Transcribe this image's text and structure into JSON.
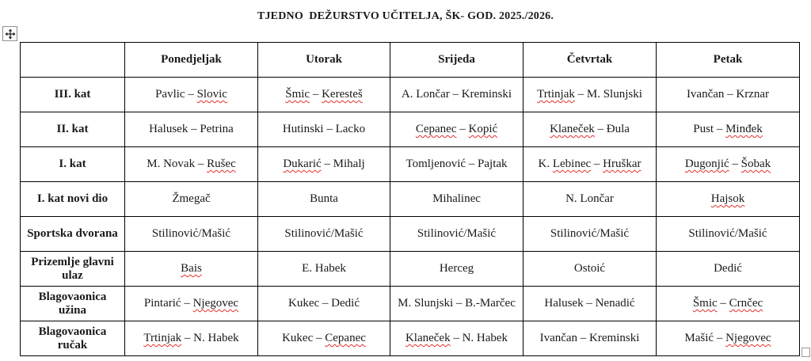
{
  "title": "TJEDNO  DEŽURSTVO UČITELJA, ŠK- GOD. 2025./2026.",
  "colors": {
    "border": "#000000",
    "spellcheck_squiggle": "#e0312e",
    "background": "#ffffff",
    "text": "#1a1a1a"
  },
  "handles": {
    "move_handle_icon": "table-move-handle",
    "resize_handle_icon": "table-resize-handle"
  },
  "table": {
    "columns": [
      "",
      "Ponedjeljak",
      "Utorak",
      "Srijeda",
      "Četvrtak",
      "Petak"
    ],
    "rows": [
      {
        "label": "III. kat",
        "cells": [
          [
            {
              "t": "Pavlic – "
            },
            {
              "t": "Slovic",
              "sq": true
            }
          ],
          [
            {
              "t": "Šmic",
              "sq": true
            },
            {
              "t": " – "
            },
            {
              "t": "Keresteš",
              "sq": true
            }
          ],
          [
            {
              "t": "A. Lončar – Kreminski"
            }
          ],
          [
            {
              "t": "Trtinjak",
              "sq": true
            },
            {
              "t": " – M. Slunjski"
            }
          ],
          [
            {
              "t": "Ivančan – Krznar"
            }
          ]
        ]
      },
      {
        "label": "II. kat",
        "cells": [
          [
            {
              "t": "Halusek – Petrina"
            }
          ],
          [
            {
              "t": "Hutinski – Lacko"
            }
          ],
          [
            {
              "t": "Cepanec",
              "sq": true
            },
            {
              "t": " – "
            },
            {
              "t": "Kopić",
              "sq": true
            }
          ],
          [
            {
              "t": "Klaneček",
              "sq": true
            },
            {
              "t": " – Đula"
            }
          ],
          [
            {
              "t": "Pust – "
            },
            {
              "t": "Minđek",
              "sq": true
            }
          ]
        ]
      },
      {
        "label": "I. kat",
        "cells": [
          [
            {
              "t": "M. Novak – "
            },
            {
              "t": "Rušec",
              "sq": true
            }
          ],
          [
            {
              "t": "Dukarić",
              "sq": true
            },
            {
              "t": " – Mihalj"
            }
          ],
          [
            {
              "t": "Tomljenović – Pajtak"
            }
          ],
          [
            {
              "t": "K. "
            },
            {
              "t": "Lebinec",
              "sq": true
            },
            {
              "t": " – "
            },
            {
              "t": "Hruškar",
              "sq": true
            }
          ],
          [
            {
              "t": "Dugonjić",
              "sq": true
            },
            {
              "t": " – "
            },
            {
              "t": "Šobak",
              "sq": true
            }
          ]
        ]
      },
      {
        "label": "I. kat novi dio",
        "cells": [
          [
            {
              "t": "Žmegač"
            }
          ],
          [
            {
              "t": "Bunta"
            }
          ],
          [
            {
              "t": "Mihalinec"
            }
          ],
          [
            {
              "t": "N. Lončar"
            }
          ],
          [
            {
              "t": "Hajsok",
              "sq": true
            }
          ]
        ]
      },
      {
        "label": "Sportska dvorana",
        "cells": [
          [
            {
              "t": "Stilinović/Mašić"
            }
          ],
          [
            {
              "t": "Stilinović/Mašić"
            }
          ],
          [
            {
              "t": "Stilinović/Mašić"
            }
          ],
          [
            {
              "t": "Stilinović/Mašić"
            }
          ],
          [
            {
              "t": "Stilinović/Mašić"
            }
          ]
        ]
      },
      {
        "label": "Prizemlje glavni ulaz",
        "cells": [
          [
            {
              "t": "Bais",
              "sq": true
            }
          ],
          [
            {
              "t": "E. Habek"
            }
          ],
          [
            {
              "t": "Herceg"
            }
          ],
          [
            {
              "t": "Ostoić"
            }
          ],
          [
            {
              "t": "Dedić"
            }
          ]
        ]
      },
      {
        "label": "Blagovaonica užina",
        "cells": [
          [
            {
              "t": "Pintarić – "
            },
            {
              "t": "Njegovec",
              "sq": true
            }
          ],
          [
            {
              "t": "Kukec – Dedić"
            }
          ],
          [
            {
              "t": "M. Slunjski – B.-Marčec"
            }
          ],
          [
            {
              "t": "Halusek – Nenadić"
            }
          ],
          [
            {
              "t": "Šmic",
              "sq": true
            },
            {
              "t": " – "
            },
            {
              "t": "Crnčec",
              "sq": true
            }
          ]
        ]
      },
      {
        "label": "Blagovaonica ručak",
        "cells": [
          [
            {
              "t": "Trtinjak",
              "sq": true
            },
            {
              "t": " – N. Habek"
            }
          ],
          [
            {
              "t": "Kukec – "
            },
            {
              "t": "Cepanec",
              "sq": true
            }
          ],
          [
            {
              "t": "Klaneček",
              "sq": true
            },
            {
              "t": " – N. Habek"
            }
          ],
          [
            {
              "t": "Ivančan – Kreminski"
            }
          ],
          [
            {
              "t": "Mašić – "
            },
            {
              "t": "Njegovec",
              "sq": true
            }
          ]
        ]
      }
    ]
  }
}
